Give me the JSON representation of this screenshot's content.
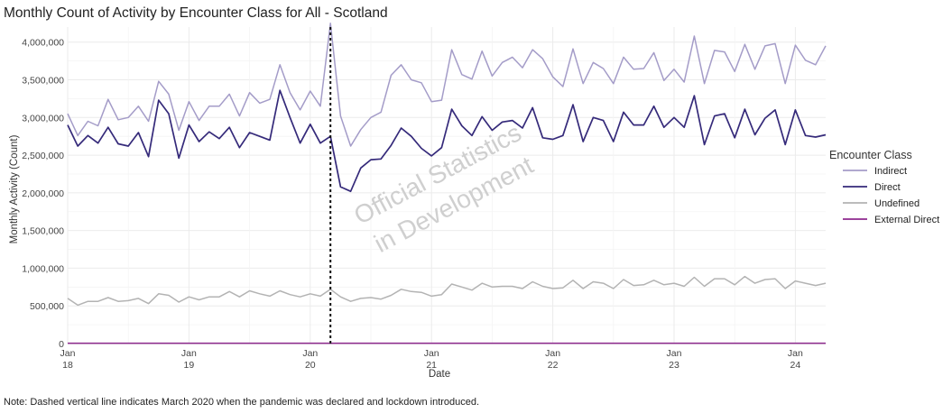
{
  "title": "Monthly Count of Activity by Encounter Class for All - Scotland",
  "note": "Note: Dashed vertical line indicates March 2020 when the pandemic was declared and lockdown introduced.",
  "watermark": [
    "Official Statistics",
    "in Development"
  ],
  "colors": {
    "Indirect": "#a49cc8",
    "Direct": "#352a7a",
    "Undefined": "#b3b3b3",
    "External Direct": "#8e2a8e",
    "grid": "#ebebeb",
    "dashed": "#111111"
  },
  "chart_data": {
    "type": "line",
    "title": "Monthly Count of Activity by Encounter Class for All - Scotland",
    "xlabel": "Date",
    "ylabel": "Monthly Activity (Count)",
    "ylim": [
      0,
      4200000
    ],
    "yticks": [
      0,
      500000,
      1000000,
      1500000,
      2000000,
      2500000,
      3000000,
      3500000,
      4000000
    ],
    "ytick_labels": [
      "0",
      "500,000",
      "1,000,000",
      "1,500,000",
      "2,000,000",
      "2,500,000",
      "3,000,000",
      "3,500,000",
      "4,000,000"
    ],
    "xlim": [
      "2018-01",
      "2024-04"
    ],
    "xticks": [
      "2018-01",
      "2019-01",
      "2020-01",
      "2021-01",
      "2022-01",
      "2023-01",
      "2024-01"
    ],
    "xtick_labels": [
      [
        "Jan",
        "18"
      ],
      [
        "Jan",
        "19"
      ],
      [
        "Jan",
        "20"
      ],
      [
        "Jan",
        "21"
      ],
      [
        "Jan",
        "22"
      ],
      [
        "Jan",
        "23"
      ],
      [
        "Jan",
        "24"
      ]
    ],
    "vline": "2020-03",
    "grid": true,
    "legend_position": "right",
    "legend_title": "Encounter Class",
    "x_start": "2018-01",
    "series": [
      {
        "name": "Indirect",
        "values": [
          3050000,
          2760000,
          2950000,
          2890000,
          3240000,
          2970000,
          3000000,
          3150000,
          2950000,
          3480000,
          3310000,
          2830000,
          3210000,
          2960000,
          3150000,
          3150000,
          3310000,
          3020000,
          3330000,
          3190000,
          3240000,
          3700000,
          3330000,
          3100000,
          3350000,
          3150000,
          4250000,
          3020000,
          2620000,
          2840000,
          3000000,
          3070000,
          3560000,
          3700000,
          3500000,
          3460000,
          3210000,
          3230000,
          3900000,
          3570000,
          3510000,
          3880000,
          3550000,
          3730000,
          3800000,
          3660000,
          3900000,
          3780000,
          3540000,
          3410000,
          3910000,
          3450000,
          3730000,
          3650000,
          3450000,
          3800000,
          3640000,
          3650000,
          3860000,
          3490000,
          3640000,
          3470000,
          4080000,
          3450000,
          3890000,
          3870000,
          3610000,
          3970000,
          3640000,
          3950000,
          3980000,
          3450000,
          3960000,
          3760000,
          3700000,
          3950000
        ]
      },
      {
        "name": "Direct",
        "values": [
          2900000,
          2620000,
          2760000,
          2660000,
          2870000,
          2650000,
          2620000,
          2800000,
          2480000,
          3230000,
          3050000,
          2460000,
          2900000,
          2680000,
          2810000,
          2720000,
          2870000,
          2600000,
          2800000,
          2750000,
          2700000,
          3360000,
          3000000,
          2660000,
          2910000,
          2660000,
          2750000,
          2080000,
          2020000,
          2330000,
          2440000,
          2450000,
          2630000,
          2860000,
          2750000,
          2590000,
          2490000,
          2600000,
          3110000,
          2890000,
          2760000,
          3010000,
          2830000,
          2940000,
          2960000,
          2860000,
          3130000,
          2730000,
          2710000,
          2760000,
          3170000,
          2680000,
          3000000,
          2960000,
          2680000,
          3070000,
          2900000,
          2900000,
          3150000,
          2870000,
          3000000,
          2870000,
          3290000,
          2640000,
          3020000,
          3050000,
          2730000,
          3110000,
          2770000,
          2990000,
          3100000,
          2640000,
          3100000,
          2760000,
          2740000,
          2770000
        ]
      },
      {
        "name": "Undefined",
        "values": [
          600000,
          510000,
          560000,
          560000,
          610000,
          560000,
          570000,
          600000,
          530000,
          660000,
          640000,
          550000,
          620000,
          580000,
          620000,
          620000,
          690000,
          620000,
          700000,
          660000,
          630000,
          700000,
          650000,
          620000,
          660000,
          630000,
          720000,
          620000,
          560000,
          600000,
          610000,
          590000,
          640000,
          720000,
          690000,
          680000,
          630000,
          650000,
          790000,
          750000,
          710000,
          800000,
          750000,
          760000,
          760000,
          730000,
          820000,
          760000,
          730000,
          740000,
          840000,
          730000,
          820000,
          800000,
          730000,
          850000,
          770000,
          780000,
          840000,
          780000,
          800000,
          760000,
          880000,
          760000,
          860000,
          860000,
          780000,
          890000,
          800000,
          850000,
          860000,
          730000,
          830000,
          800000,
          770000,
          800000
        ]
      },
      {
        "name": "External Direct",
        "values": [
          5000,
          5000,
          5000,
          5000,
          5000,
          5000,
          5000,
          5000,
          5000,
          5000,
          5000,
          5000,
          5000,
          5000,
          5000,
          5000,
          5000,
          5000,
          5000,
          5000,
          5000,
          5000,
          5000,
          5000,
          5000,
          5000,
          5000,
          5000,
          5000,
          5000,
          5000,
          5000,
          5000,
          5000,
          5000,
          5000,
          5000,
          5000,
          5000,
          5000,
          5000,
          5000,
          5000,
          5000,
          5000,
          5000,
          5000,
          5000,
          5000,
          5000,
          5000,
          5000,
          5000,
          5000,
          5000,
          5000,
          5000,
          5000,
          5000,
          5000,
          5000,
          5000,
          5000,
          5000,
          5000,
          5000,
          5000,
          5000,
          5000,
          5000,
          5000,
          5000,
          5000,
          5000,
          5000,
          5000
        ]
      }
    ]
  }
}
